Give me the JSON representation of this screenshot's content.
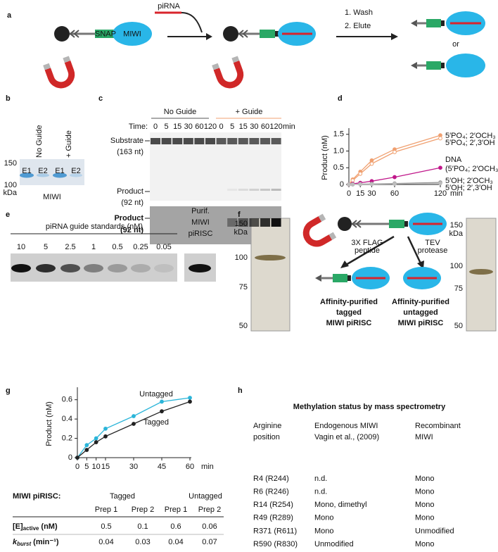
{
  "panel_labels": [
    "a",
    "b",
    "c",
    "d",
    "e",
    "f",
    "g",
    "h"
  ],
  "a": {
    "piRNA": "piRNA",
    "snap": "SNAP",
    "miwi": "MIWI",
    "steps": [
      "1. Wash",
      "2. Elute"
    ],
    "or": "or"
  },
  "b": {
    "columns": [
      "No Guide",
      "+ Guide"
    ],
    "lanes": [
      "E1",
      "E2",
      "E1",
      "E2"
    ],
    "markers": [
      "150",
      "100"
    ],
    "unit": "kDa",
    "label": "MIWI"
  },
  "c": {
    "groups": [
      "No Guide",
      "+ Guide"
    ],
    "time_label": "Time:",
    "times": [
      "0",
      "5",
      "15",
      "30",
      "60",
      "120",
      "0",
      "5",
      "15",
      "30",
      "60",
      "120"
    ],
    "time_unit": "min",
    "substrate": [
      "Substrate",
      "(163 nt)"
    ],
    "product": [
      "Product",
      "(92 nt)"
    ],
    "product_bold": [
      "Product",
      "(92 nt)"
    ]
  },
  "chart_data": [
    {
      "type": "line",
      "ylabel": "Product (nM)",
      "x_unit": "min",
      "x": [
        0,
        5,
        15,
        30,
        60,
        120
      ],
      "xlim": [
        0,
        120
      ],
      "xticks": [
        0,
        15,
        30,
        60,
        120
      ],
      "ylim": [
        0,
        1.6
      ],
      "yticks": [
        0,
        0.5,
        {
          "value": 1,
          "label": "1.0"
        },
        1.5
      ],
      "series": [
        {
          "name": "5′PO₄; 2′OCH₃",
          "color": "#f0a070",
          "values": [
            0,
            0.15,
            0.38,
            0.72,
            1.05,
            1.47
          ]
        },
        {
          "name": "5′PO₄; 2′,3′OH",
          "color": "#f0a070",
          "marker": "open",
          "values": [
            0,
            0.12,
            0.32,
            0.62,
            0.97,
            1.38
          ]
        },
        {
          "name": "DNA",
          "color": "#c0178a",
          "values": [
            0,
            0.02,
            0.05,
            0.1,
            0.22,
            0.5
          ]
        },
        {
          "name": "5′OH; 2′OCH₃",
          "color": "#8a8a8a",
          "values": [
            0,
            0,
            0.01,
            0.02,
            0.03,
            0.06
          ]
        },
        {
          "name": "5′OH; 2′,3′OH",
          "color": "#bdbdbd",
          "values": [
            0,
            0,
            0.01,
            0.01,
            0.02,
            0.04
          ]
        }
      ],
      "annotation": "(5′PO₄; 2′OCH₃)"
    },
    {
      "type": "line",
      "ylabel": "Product (nM)",
      "x_unit": "min",
      "x": [
        0,
        5,
        10,
        15,
        30,
        45,
        60
      ],
      "xlim": [
        0,
        60
      ],
      "xticks": [
        0,
        5,
        10,
        15,
        30,
        45,
        60
      ],
      "ylim": [
        0,
        0.7
      ],
      "yticks": [
        0,
        0.2,
        0.4,
        0.6
      ],
      "series": [
        {
          "name": "Untagged",
          "color": "#2bb5d9",
          "values": [
            0,
            0.13,
            0.2,
            0.3,
            0.43,
            0.58,
            0.62
          ]
        },
        {
          "name": "Tagged",
          "color": "#222222",
          "values": [
            0,
            0.08,
            0.16,
            0.22,
            0.35,
            0.48,
            0.58
          ]
        }
      ]
    }
  ],
  "e": {
    "title": "piRNA guide standards (nM)",
    "standards": [
      "10",
      "5",
      "2.5",
      "1",
      "0.5",
      "0.25",
      "0.05"
    ],
    "purified": [
      "Purif.",
      "MIWI",
      "piRISC"
    ]
  },
  "f": {
    "left_markers": [
      "150",
      "100",
      "75",
      "50"
    ],
    "right_markers": [
      "150",
      "100",
      "75",
      "50"
    ],
    "unit": "kDa",
    "peptide": [
      "3X FLAG",
      "peptide"
    ],
    "protease": [
      "TEV",
      "protease"
    ],
    "tagged": [
      "Affinity-purified",
      "tagged",
      "MIWI piRISC"
    ],
    "untagged": [
      "Affinity-purified",
      "untagged",
      "MIWI piRISC"
    ]
  },
  "g_table": {
    "heading": "MIWI piRISC:",
    "groups": [
      "Tagged",
      "Untagged"
    ],
    "preps": [
      "Prep 1",
      "Prep 2",
      "Prep 1",
      "Prep 2"
    ],
    "rows": [
      {
        "label": "[E]",
        "sub": "active",
        "unit": " (nM)",
        "values": [
          "0.5",
          "0.1",
          "0.6",
          "0.06"
        ]
      },
      {
        "label": "k",
        "sub": "burst",
        "unit": " (min⁻¹)",
        "values": [
          "0.04",
          "0.03",
          "0.04",
          "0.07"
        ]
      }
    ]
  },
  "h": {
    "title": "Methylation status by mass spectrometry",
    "columns": [
      [
        "Arginine",
        "position"
      ],
      [
        "Endogenous MIWI",
        "Vagin et al., (2009)"
      ],
      [
        "Recombinant",
        "MIWI"
      ]
    ],
    "rows": [
      [
        "R4 (R244)",
        "n.d.",
        "Mono"
      ],
      [
        "R6 (R246)",
        "n.d.",
        "Mono"
      ],
      [
        "R14 (R254)",
        "Mono, dimethyl",
        "Mono"
      ],
      [
        "R49 (R289)",
        "Mono",
        "Mono"
      ],
      [
        "R371 (R611)",
        "Mono",
        "Unmodified"
      ],
      [
        "R590 (R830)",
        "Unmodified",
        "Mono"
      ]
    ]
  }
}
